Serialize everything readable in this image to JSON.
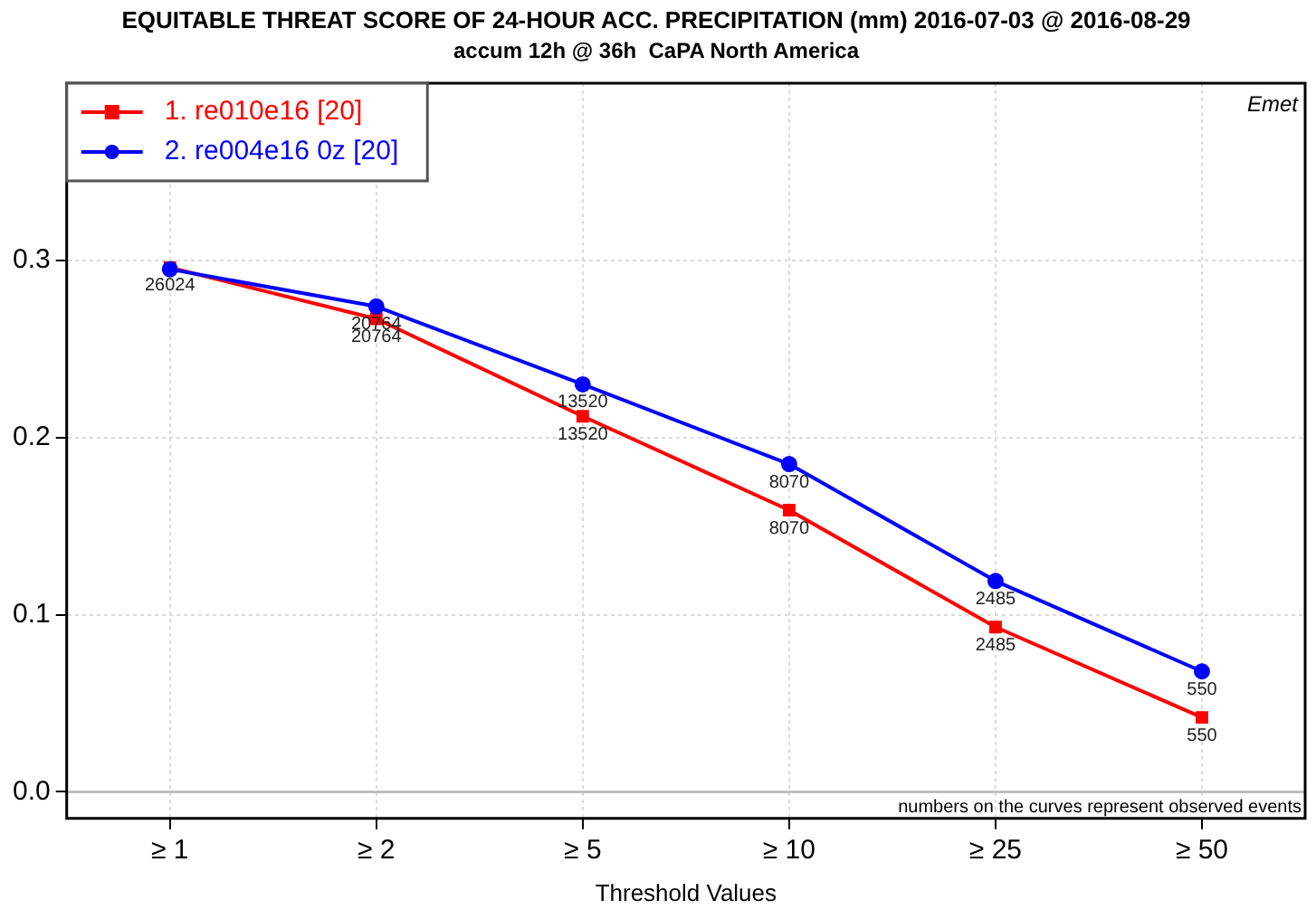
{
  "chart_data": {
    "type": "line",
    "title": "EQUITABLE THREAT SCORE OF 24-HOUR ACC. PRECIPITATION (mm) 2016-07-03 @ 2016-08-29",
    "subtitle": "accum 12h @ 36h  CaPA North America",
    "xlabel": "Threshold Values",
    "categories": [
      "≥ 1",
      "≥ 2",
      "≥ 5",
      "≥ 10",
      "≥ 25",
      "≥ 50"
    ],
    "series": [
      {
        "name": "1. re010e16 [20]",
        "color": "#ff0000",
        "marker": "square",
        "values": [
          0.296,
          0.267,
          0.212,
          0.159,
          0.093,
          0.042
        ]
      },
      {
        "name": "2. re004e16 0z [20]",
        "color": "#0000ff",
        "marker": "circle",
        "values": [
          0.295,
          0.274,
          0.23,
          0.185,
          0.119,
          0.068
        ]
      }
    ],
    "ylim": [
      -0.015,
      0.4
    ],
    "yticks": [
      {
        "value": 0,
        "label": "0.0"
      },
      {
        "value": 0.1,
        "label": "0.1"
      },
      {
        "value": 0.2,
        "label": "0.2"
      },
      {
        "value": 0.3,
        "label": "0.3"
      }
    ],
    "ref_lines": [
      {
        "axis": "y",
        "value": 0,
        "color": "#bebebe"
      }
    ],
    "grid": true,
    "legend": "top left",
    "line_style": "solid",
    "annotations": [
      "Emet",
      "numbers on the curves represent observed events",
      {
        "text": "26024",
        "x": "≥ 1",
        "y": 0.296
      },
      {
        "text": "20764",
        "x": "≥ 2",
        "y": 0.274
      },
      {
        "text": "20764",
        "x": "≥ 2",
        "y": 0.267
      },
      {
        "text": "13520",
        "x": "≥ 5",
        "y": 0.23
      },
      {
        "text": "13520",
        "x": "≥ 5",
        "y": 0.212
      },
      {
        "text": "8070",
        "x": "≥ 10",
        "y": 0.185
      },
      {
        "text": "8070",
        "x": "≥ 10",
        "y": 0.159
      },
      {
        "text": "2485",
        "x": "≥ 25",
        "y": 0.119
      },
      {
        "text": "2485",
        "x": "≥ 25",
        "y": 0.093
      },
      {
        "text": "550",
        "x": "≥ 50",
        "y": 0.068
      },
      {
        "text": "550",
        "x": "≥ 50",
        "y": 0.042
      }
    ]
  }
}
